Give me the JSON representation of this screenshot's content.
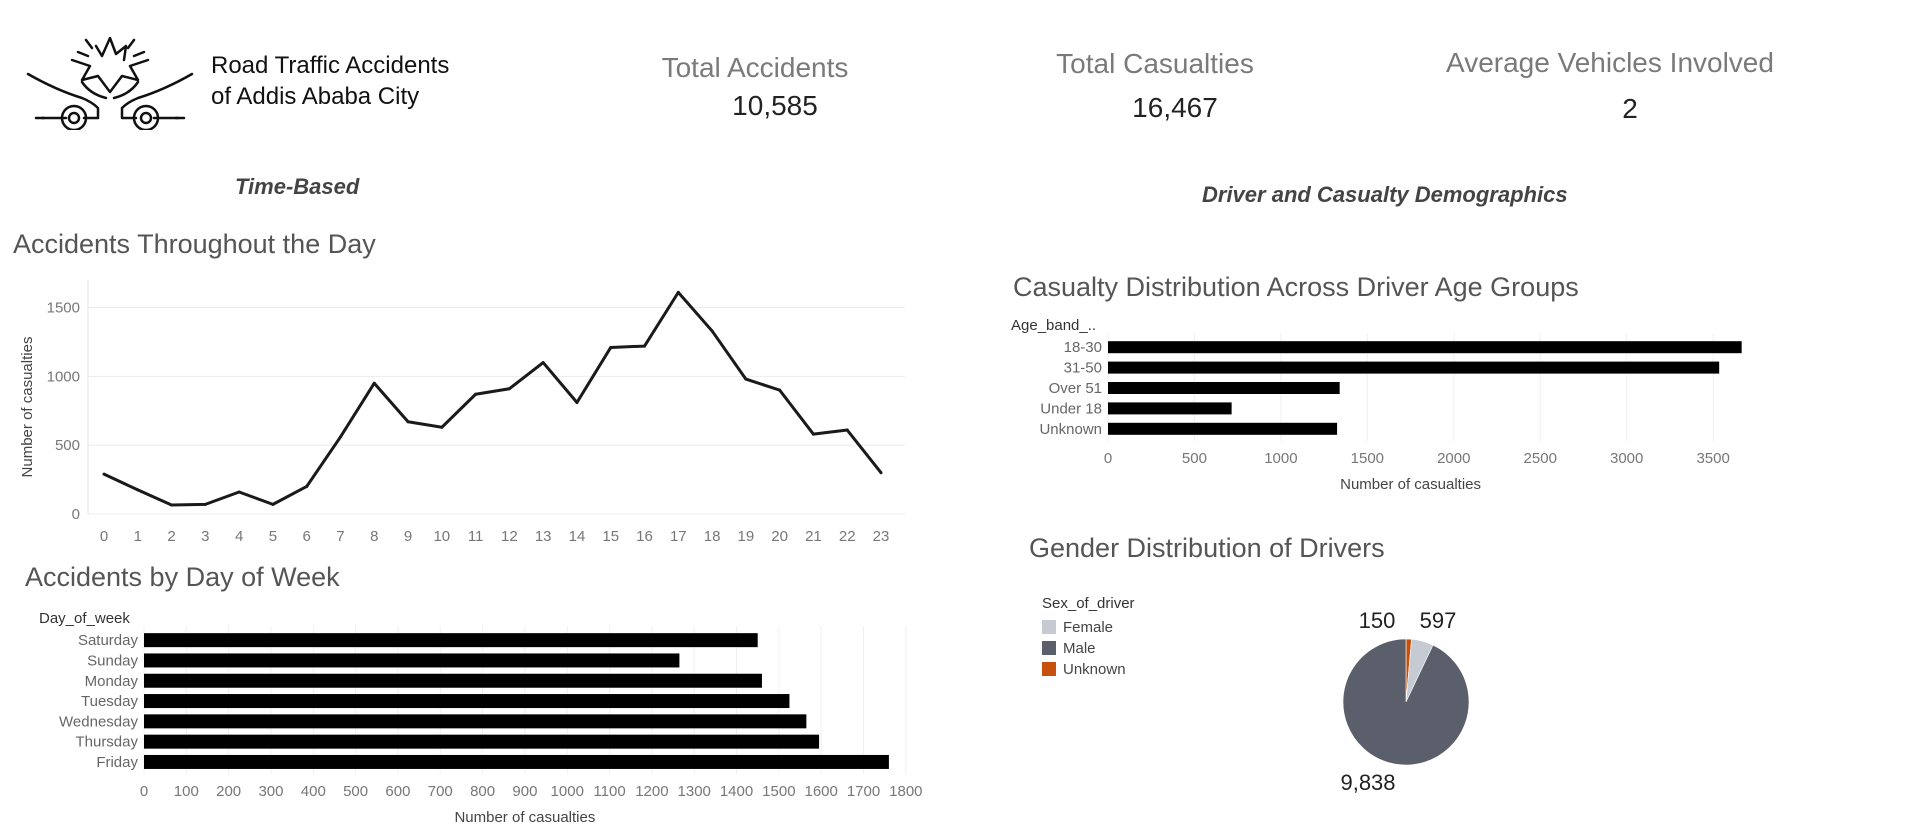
{
  "header": {
    "title_line1": "Road Traffic Accidents",
    "title_line2": "of Addis Ababa City",
    "logo_icon": "car-crash-icon"
  },
  "kpis": [
    {
      "label": "Total Accidents",
      "value": "10,585"
    },
    {
      "label": "Total Casualties",
      "value": "16,467"
    },
    {
      "label": "Average Vehicles Involved",
      "value": "2"
    }
  ],
  "sections": {
    "time_based": "Time-Based",
    "demographics": "Driver and Casualty Demographics"
  },
  "chart_data": [
    {
      "type": "line",
      "title": "Accidents Throughout the Day",
      "xlabel": "",
      "ylabel": "Number of casualties",
      "x": [
        0,
        1,
        2,
        3,
        4,
        5,
        6,
        7,
        8,
        9,
        10,
        11,
        12,
        13,
        14,
        15,
        16,
        17,
        18,
        19,
        20,
        21,
        22,
        23
      ],
      "values": [
        290,
        175,
        65,
        70,
        160,
        70,
        200,
        560,
        950,
        670,
        630,
        870,
        910,
        1100,
        810,
        1210,
        1220,
        1610,
        1330,
        980,
        900,
        580,
        610,
        300
      ],
      "ylim": [
        0,
        1700
      ],
      "yticks": [
        0,
        500,
        1000,
        1500
      ],
      "grid": true,
      "color": "#1a1a1a"
    },
    {
      "type": "bar",
      "orientation": "horizontal",
      "title": "Accidents by Day of Week",
      "category_header": "Day_of_week",
      "xlabel": "Number of casualties",
      "categories": [
        "Saturday",
        "Sunday",
        "Monday",
        "Tuesday",
        "Wednesday",
        "Thursday",
        "Friday"
      ],
      "values": [
        1450,
        1265,
        1460,
        1525,
        1565,
        1595,
        1760
      ],
      "xlim": [
        0,
        1850
      ],
      "xticks": [
        0,
        100,
        200,
        300,
        400,
        500,
        600,
        700,
        800,
        900,
        1000,
        1100,
        1200,
        1300,
        1400,
        1500,
        1600,
        1700,
        1800
      ],
      "color": "#000000"
    },
    {
      "type": "bar",
      "orientation": "horizontal",
      "title": "Casualty Distribution Across Driver Age Groups",
      "category_header": "Age_band_..",
      "xlabel": "Number of casualties",
      "categories": [
        "18-30",
        "31-50",
        "Over 51",
        "Under 18",
        "Unknown"
      ],
      "values": [
        3665,
        3535,
        1340,
        715,
        1325
      ],
      "xlim": [
        0,
        3800
      ],
      "xticks": [
        0,
        500,
        1000,
        1500,
        2000,
        2500,
        3000,
        3500
      ],
      "color": "#000000"
    },
    {
      "type": "pie",
      "title": "Gender Distribution of Drivers",
      "legend_title": "Sex_of_driver",
      "legend_placement": "left",
      "slices": [
        {
          "label": "Female",
          "value": 597,
          "color": "#c5cad3",
          "value_label": "597"
        },
        {
          "label": "Male",
          "value": 9838,
          "color": "#5a5f6b",
          "value_label": "9,838"
        },
        {
          "label": "Unknown",
          "value": 150,
          "color": "#c8500f",
          "value_label": "150"
        }
      ]
    }
  ]
}
